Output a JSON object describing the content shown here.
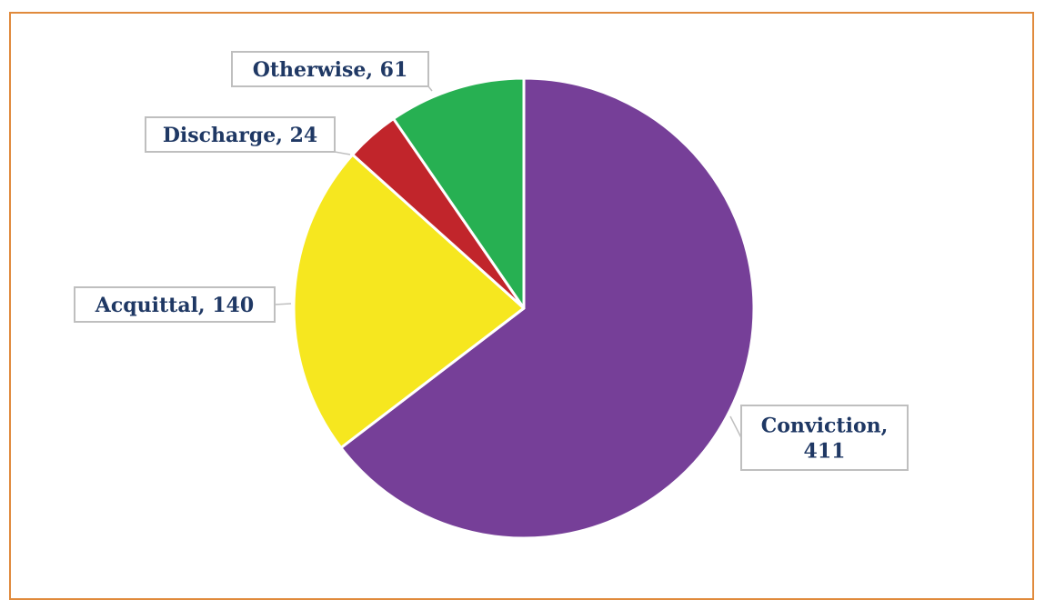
{
  "colors": {
    "frame_border": "#e08a3c",
    "label_text": "#1f3864",
    "label_border": "#bfbfbf",
    "slice_edge": "#ffffff"
  },
  "chart_data": {
    "type": "pie",
    "start_angle_deg": 0,
    "direction": "clockwise",
    "slices": [
      {
        "label": "Conviction",
        "value": 411,
        "color": "#763f98",
        "display": [
          "Conviction,",
          "411"
        ]
      },
      {
        "label": "Acquittal",
        "value": 140,
        "color": "#f6e71f",
        "display": [
          "Acquittal, 140"
        ]
      },
      {
        "label": "Discharge",
        "value": 24,
        "color": "#c1252b",
        "display": [
          "Discharge, 24"
        ]
      },
      {
        "label": "Otherwise",
        "value": 61,
        "color": "#27b052",
        "display": [
          "Otherwise, 61"
        ]
      }
    ]
  }
}
